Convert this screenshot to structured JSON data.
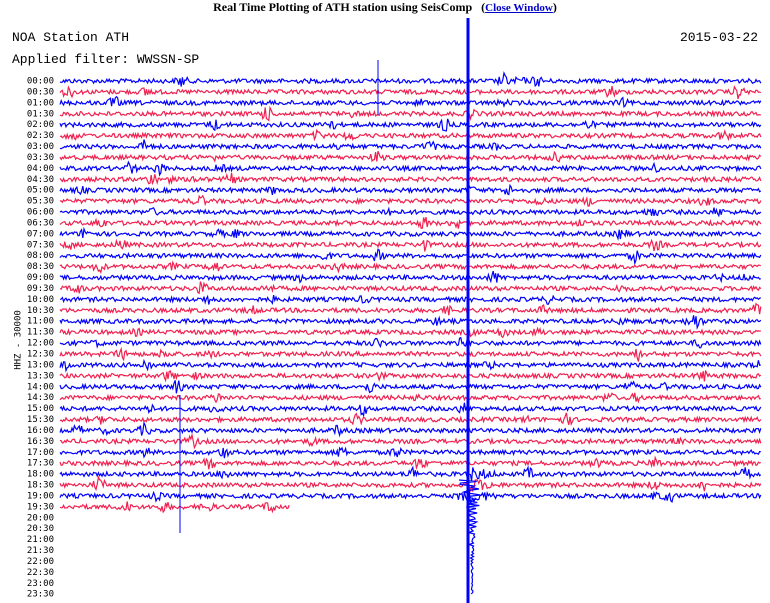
{
  "header": {
    "title": "Real Time Plotting of ATH station using SeisComp",
    "close_link": {
      "before": "(",
      "label": "Close Window",
      "after": ")"
    },
    "station": "NOA Station ATH",
    "date": "2015-03-22",
    "filter": "Applied filter: WWSSN-SP"
  },
  "plot": {
    "channel_label": "HHZ - 30000",
    "time_labels": [
      "00:00",
      "00:30",
      "01:00",
      "01:30",
      "02:00",
      "02:30",
      "03:00",
      "03:30",
      "04:00",
      "04:30",
      "05:00",
      "05:30",
      "06:00",
      "06:30",
      "07:00",
      "07:30",
      "08:00",
      "08:30",
      "09:00",
      "09:30",
      "10:00",
      "10:30",
      "11:00",
      "11:30",
      "12:00",
      "12:30",
      "13:00",
      "13:30",
      "14:00",
      "14:30",
      "15:00",
      "15:30",
      "16:00",
      "16:30",
      "17:00",
      "17:30",
      "18:00",
      "18:30",
      "19:00",
      "19:30",
      "20:00",
      "20:30",
      "21:00",
      "21:30",
      "22:00",
      "22:30",
      "23:00",
      "23:30"
    ]
  }
}
